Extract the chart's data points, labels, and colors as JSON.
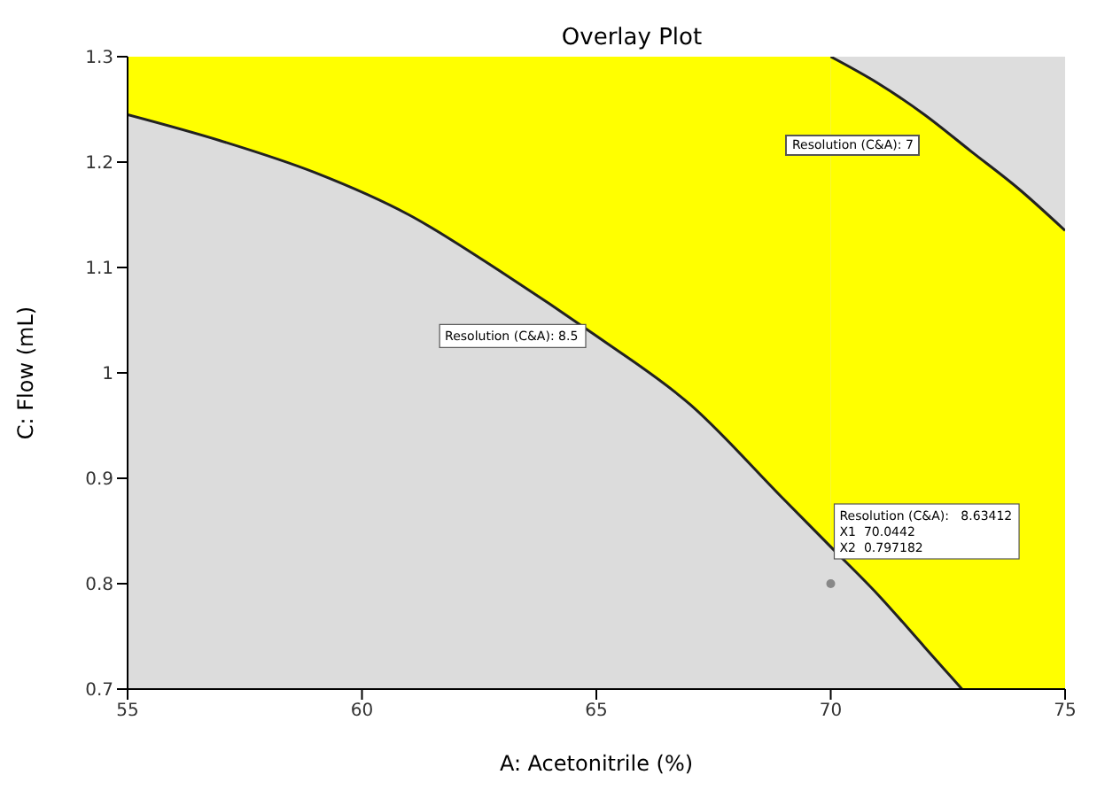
{
  "chart_data": {
    "type": "area",
    "title": "Overlay Plot",
    "xlabel": "A: Acetonitrile (%)",
    "ylabel": "C: Flow (mL)",
    "xlim": [
      55,
      75
    ],
    "xticks": [
      55,
      60,
      65,
      70,
      75
    ],
    "ylim": [
      0.7,
      1.3
    ],
    "yticks": [
      0.7,
      0.8,
      0.9,
      1,
      1.1,
      1.2,
      1.3
    ],
    "series": [
      {
        "color": "#ffff00",
        "x": [
          55,
          60,
          65,
          70
        ],
        "values": [
          1.3,
          1.3,
          1.3,
          1.3
        ]
      },
      {
        "color": "#ffff00",
        "x": [
          70,
          71,
          72,
          73,
          74,
          75
        ],
        "values": [
          1.3,
          1.275,
          1.245,
          1.21,
          1.175,
          1.135
        ]
      },
      {
        "color": "#dcdcdc",
        "x": [
          55,
          57,
          59,
          61,
          63,
          65,
          67,
          69,
          70,
          71,
          72,
          72.8
        ],
        "values": [
          1.245,
          1.22,
          1.19,
          1.15,
          1.095,
          1.035,
          0.97,
          0.88,
          0.835,
          0.79,
          0.74,
          0.7
        ]
      },
      {
        "type": "scatter",
        "color": "#888888",
        "x": [
          70
        ],
        "values": [
          0.8
        ]
      }
    ],
    "annotations": [
      {
        "text": "Resolution (C&A): 8.5",
        "x": 65,
        "y": 1.035
      },
      "Resolution (C&A): 7",
      {
        "text": "Resolution (C&A):   8.63412\nX1  70.0442\nX2  0.797182",
        "x": 70,
        "y": 0.8
      }
    ]
  }
}
